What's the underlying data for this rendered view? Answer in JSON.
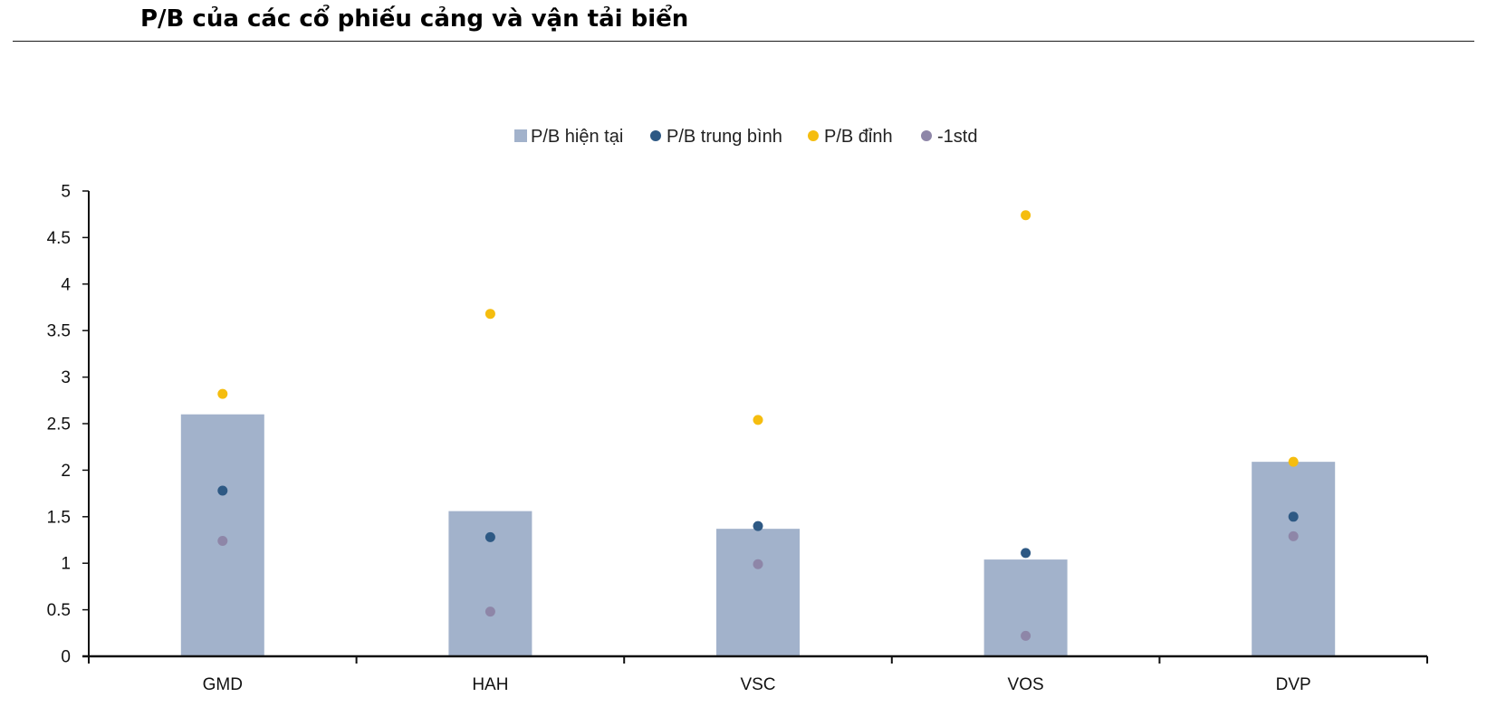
{
  "page_title": "P/B của các cổ phiếu cảng và vận tải biển",
  "chart_data": {
    "type": "bar",
    "title": "P/B của các cổ phiếu cảng và vận tải biển",
    "categories": [
      "GMD",
      "HAH",
      "VSC",
      "VOS",
      "DVP"
    ],
    "ylim": [
      0,
      5
    ],
    "yticks": [
      0,
      0.5,
      1,
      1.5,
      2,
      2.5,
      3,
      3.5,
      4,
      4.5,
      5
    ],
    "ytick_labels": [
      "0",
      "0.5",
      "1",
      "1.5",
      "2",
      "2.5",
      "3",
      "3.5",
      "4",
      "4.5",
      "5"
    ],
    "grid": false,
    "legend_position": "top-center",
    "xlabel": "",
    "ylabel": "",
    "series": [
      {
        "name": "P/B hiện tại",
        "kind": "bar",
        "marker": "square",
        "color": "#a2b2cb",
        "values": [
          2.6,
          1.56,
          1.37,
          1.04,
          2.09
        ]
      },
      {
        "name": "P/B trung bình",
        "kind": "scatter",
        "marker": "circle",
        "color": "#2e5984",
        "values": [
          1.78,
          1.28,
          1.4,
          1.11,
          1.5
        ]
      },
      {
        "name": "P/B đỉnh",
        "kind": "scatter",
        "marker": "circle",
        "color": "#f5bd0f",
        "values": [
          2.82,
          3.68,
          2.54,
          4.74,
          2.09
        ]
      },
      {
        "name": "-1std",
        "kind": "scatter",
        "marker": "circle",
        "color": "#8e86a8",
        "values": [
          1.24,
          0.48,
          0.99,
          0.22,
          1.29
        ]
      }
    ]
  }
}
